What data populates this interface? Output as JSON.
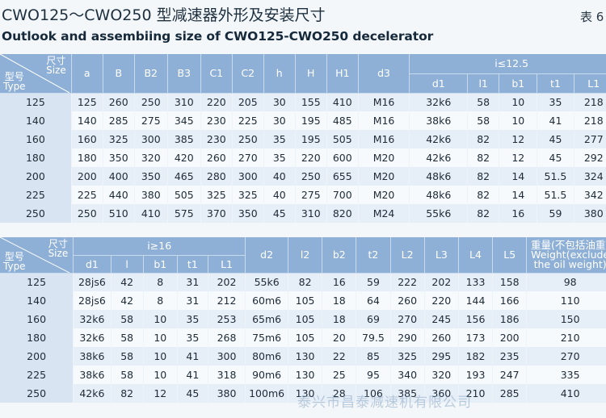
{
  "header": {
    "title_cn": "CWO125～CWO250 型减速器外形及安装尺寸",
    "table_no": "表 6",
    "title_en": "Outlook and assembiing size of CWO125-CWO250  decelerator"
  },
  "corner": {
    "size_cn": "尺寸",
    "size_en": "Size",
    "type_cn": "型号",
    "type_en": "Type"
  },
  "table1": {
    "columns": [
      "a",
      "B",
      "B2",
      "B3",
      "C1",
      "C2",
      "h",
      "H",
      "H1",
      "d3"
    ],
    "ratio_group": "i≤12.5",
    "ratio_columns": [
      "d1",
      "l1",
      "b1",
      "t1",
      "L1"
    ],
    "rows": [
      [
        "125",
        "125",
        "260",
        "250",
        "310",
        "220",
        "205",
        "30",
        "155",
        "410",
        "M16",
        "32k6",
        "58",
        "10",
        "35",
        "218"
      ],
      [
        "140",
        "140",
        "285",
        "275",
        "345",
        "230",
        "225",
        "30",
        "195",
        "485",
        "M16",
        "38k6",
        "58",
        "10",
        "41",
        "218"
      ],
      [
        "160",
        "160",
        "325",
        "300",
        "385",
        "230",
        "250",
        "35",
        "195",
        "505",
        "M16",
        "42k6",
        "82",
        "12",
        "45",
        "277"
      ],
      [
        "180",
        "180",
        "350",
        "320",
        "420",
        "260",
        "270",
        "35",
        "220",
        "600",
        "M20",
        "42k6",
        "82",
        "12",
        "45",
        "292"
      ],
      [
        "200",
        "200",
        "400",
        "350",
        "465",
        "280",
        "300",
        "40",
        "250",
        "655",
        "M20",
        "48k6",
        "82",
        "14",
        "51.5",
        "324"
      ],
      [
        "225",
        "225",
        "440",
        "380",
        "505",
        "325",
        "325",
        "40",
        "275",
        "700",
        "M20",
        "48k6",
        "82",
        "14",
        "51.5",
        "342"
      ],
      [
        "250",
        "250",
        "510",
        "410",
        "575",
        "370",
        "350",
        "45",
        "310",
        "820",
        "M24",
        "55k6",
        "82",
        "16",
        "59",
        "380"
      ]
    ]
  },
  "table2": {
    "ratio_group": "i≥16",
    "ratio_columns": [
      "d1",
      "l",
      "b1",
      "t1",
      "L1"
    ],
    "columns": [
      "d2",
      "l2",
      "b2",
      "t2",
      "L2",
      "L3",
      "L4",
      "L5"
    ],
    "weight_header": [
      "重量(不包括油重)",
      "Weight(exclude",
      "the oil weight)"
    ],
    "rows": [
      [
        "125",
        "28js6",
        "42",
        "8",
        "31",
        "202",
        "55k6",
        "82",
        "16",
        "59",
        "222",
        "202",
        "133",
        "158",
        "98"
      ],
      [
        "140",
        "28js6",
        "42",
        "8",
        "31",
        "212",
        "60m6",
        "105",
        "18",
        "64",
        "260",
        "220",
        "144",
        "166",
        "110"
      ],
      [
        "160",
        "32k6",
        "58",
        "10",
        "35",
        "253",
        "65m6",
        "105",
        "18",
        "69",
        "270",
        "245",
        "156",
        "186",
        "150"
      ],
      [
        "180",
        "32k6",
        "58",
        "10",
        "35",
        "268",
        "75m6",
        "105",
        "20",
        "79.5",
        "290",
        "260",
        "173",
        "200",
        "210"
      ],
      [
        "200",
        "38k6",
        "58",
        "10",
        "41",
        "300",
        "80m6",
        "130",
        "22",
        "85",
        "325",
        "295",
        "182",
        "235",
        "270"
      ],
      [
        "225",
        "38k6",
        "58",
        "10",
        "41",
        "318",
        "90m6",
        "130",
        "25",
        "95",
        "340",
        "320",
        "193",
        "247",
        "335"
      ],
      [
        "250",
        "42k6",
        "82",
        "12",
        "45",
        "380",
        "100m6",
        "130",
        "28",
        "106",
        "385",
        "360",
        "210",
        "285",
        "410"
      ]
    ]
  },
  "watermark": "泰兴市昌泰减速机有限公司"
}
